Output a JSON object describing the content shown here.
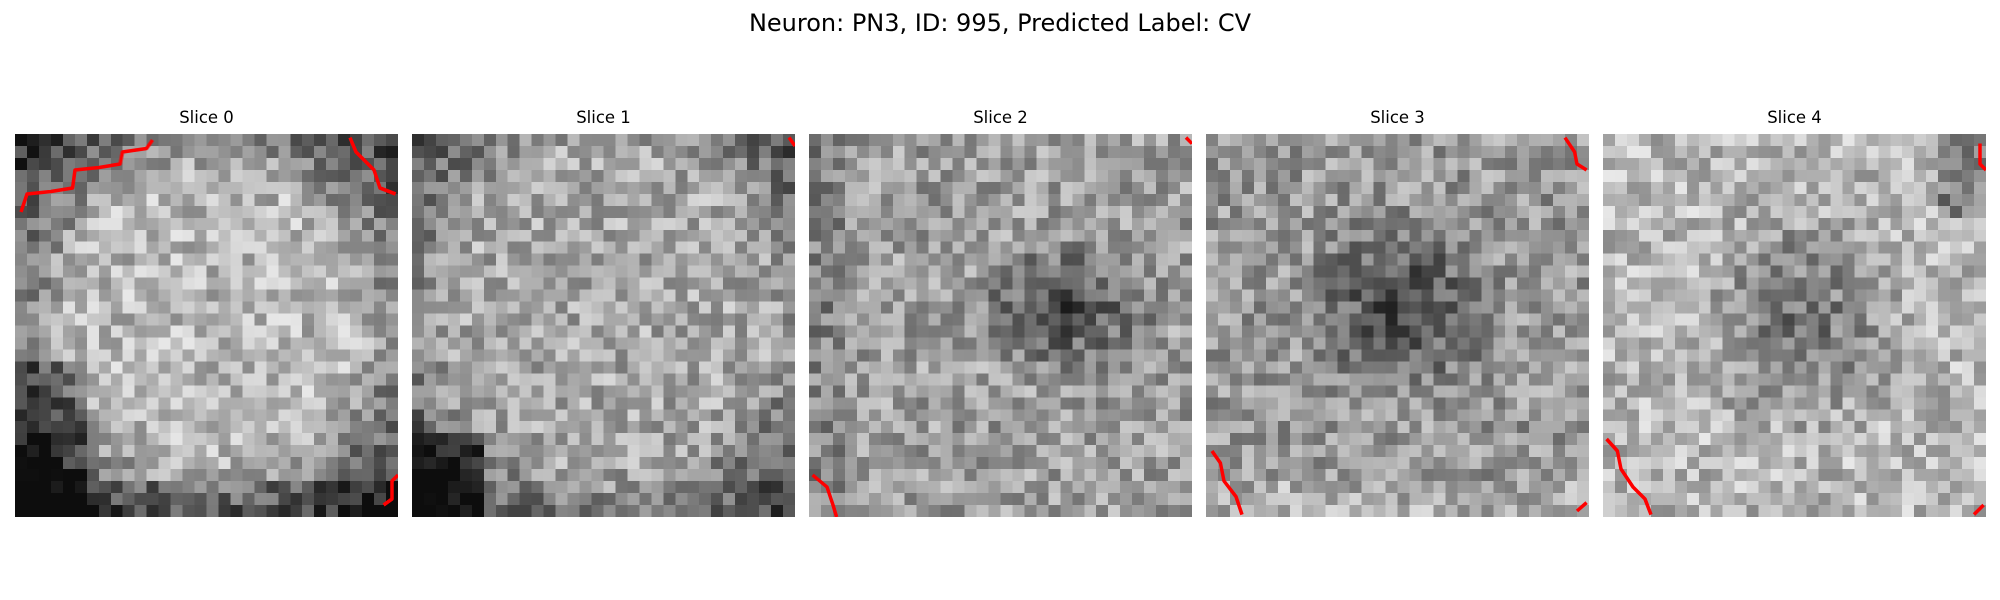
{
  "figure": {
    "title": "Neuron: PN3, ID: 995, Predicted Label: CV"
  },
  "slices": [
    {
      "title": "Slice 0",
      "contour_color": "#ff0000",
      "seed": 11,
      "description_tag": "bright-center-dark-lower-left"
    },
    {
      "title": "Slice 1",
      "contour_color": "#ff0000",
      "seed": 23,
      "description_tag": "bright-dark-bottom-left"
    },
    {
      "title": "Slice 2",
      "contour_color": "#ff0000",
      "seed": 37,
      "description_tag": "dark-center-right"
    },
    {
      "title": "Slice 3",
      "contour_color": "#ff0000",
      "seed": 51,
      "description_tag": "dark-center"
    },
    {
      "title": "Slice 4",
      "contour_color": "#ff0000",
      "seed": 73,
      "description_tag": "bright-dark-center"
    }
  ]
}
